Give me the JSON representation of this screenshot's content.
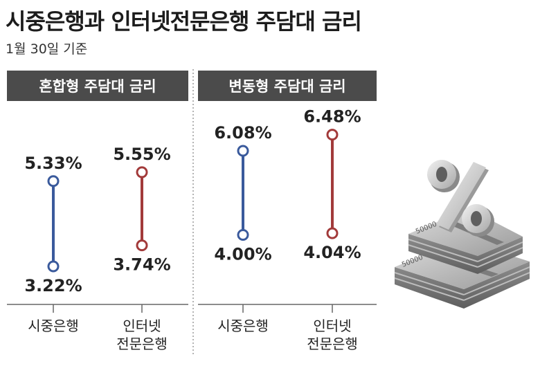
{
  "title": "시중은행과 인터넷전문은행 주담대 금리",
  "subtitle": "1월 30일 기준",
  "colors": {
    "commercial": "#3a5a9c",
    "internet": "#a23a3a",
    "header_bg": "#4b4b4b"
  },
  "chart_data": [
    {
      "type": "range",
      "title": "혼합형 주담대 금리",
      "categories": [
        "시중은행",
        "인터넷 전문은행"
      ],
      "series": [
        {
          "name": "시중은행",
          "min": 3.22,
          "max": 5.33,
          "min_label": "3.22%",
          "max_label": "5.33%"
        },
        {
          "name": "인터넷 전문은행",
          "min": 3.74,
          "max": 5.55,
          "min_label": "3.74%",
          "max_label": "5.55%"
        }
      ]
    },
    {
      "type": "range",
      "title": "변동형 주담대 금리",
      "categories": [
        "시중은행",
        "인터넷 전문은행"
      ],
      "series": [
        {
          "name": "시중은행",
          "min": 4.0,
          "max": 6.08,
          "min_label": "4.00%",
          "max_label": "6.08%"
        },
        {
          "name": "인터넷 전문은행",
          "min": 4.04,
          "max": 6.48,
          "min_label": "4.04%",
          "max_label": "6.48%"
        }
      ]
    }
  ],
  "category_labels": {
    "commercial": [
      "시중은행"
    ],
    "internet": [
      "인터넷",
      "전문은행"
    ]
  },
  "illustration": {
    "icon": "percent-money-stack-icon",
    "banknote_text": "50000"
  }
}
